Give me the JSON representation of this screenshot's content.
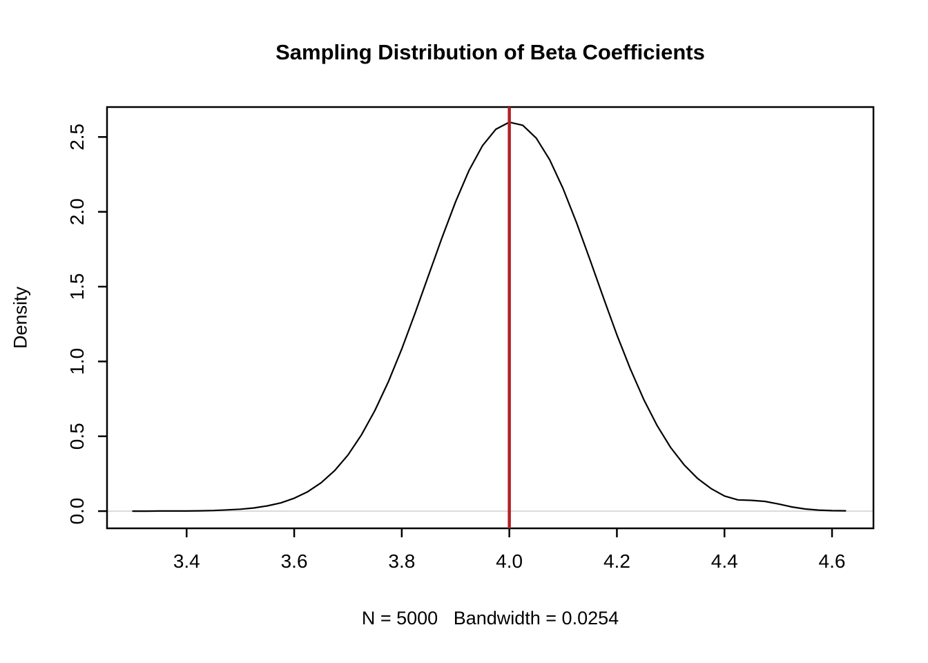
{
  "figure": {
    "background": "#ffffff"
  },
  "chart_data": {
    "type": "line",
    "title": "Sampling Distribution of Beta Coefficients",
    "xlabel": "N = 5000   Bandwidth = 0.0254",
    "ylabel": "Density",
    "x_tick_labels": [
      "3.4",
      "3.6",
      "3.8",
      "4.0",
      "4.2",
      "4.4",
      "4.6"
    ],
    "y_tick_labels": [
      "0.0",
      "0.5",
      "1.0",
      "1.5",
      "2.0",
      "2.5"
    ],
    "xlim": [
      3.252,
      4.677
    ],
    "ylim": [
      -0.115,
      2.7
    ],
    "grid": false,
    "legend": "none",
    "reference_lines": {
      "vertical": {
        "x": 4.0,
        "color": "#B22222",
        "width": 4.5
      },
      "horizontal_zero": {
        "y": 0,
        "color": "#D9D9D9",
        "width": 2
      }
    },
    "series": [
      {
        "name": "density",
        "color": "#000000",
        "width": 2.2,
        "x": [
          3.3,
          3.325,
          3.35,
          3.375,
          3.4,
          3.425,
          3.45,
          3.475,
          3.5,
          3.525,
          3.55,
          3.575,
          3.6,
          3.625,
          3.65,
          3.675,
          3.7,
          3.725,
          3.75,
          3.775,
          3.8,
          3.825,
          3.85,
          3.875,
          3.9,
          3.925,
          3.95,
          3.975,
          4.0,
          4.025,
          4.05,
          4.075,
          4.1,
          4.125,
          4.15,
          4.175,
          4.2,
          4.225,
          4.25,
          4.275,
          4.3,
          4.325,
          4.35,
          4.375,
          4.4,
          4.425,
          4.45,
          4.475,
          4.5,
          4.525,
          4.55,
          4.575,
          4.6,
          4.625
        ],
        "y": [
          0.0,
          0.0,
          0.001,
          0.001,
          0.001,
          0.002,
          0.004,
          0.008,
          0.013,
          0.021,
          0.035,
          0.055,
          0.086,
          0.129,
          0.189,
          0.27,
          0.375,
          0.509,
          0.672,
          0.864,
          1.084,
          1.325,
          1.577,
          1.829,
          2.067,
          2.276,
          2.441,
          2.552,
          2.599,
          2.578,
          2.493,
          2.348,
          2.155,
          1.927,
          1.679,
          1.425,
          1.178,
          0.95,
          0.745,
          0.57,
          0.425,
          0.309,
          0.218,
          0.151,
          0.101,
          0.075,
          0.072,
          0.065,
          0.048,
          0.028,
          0.014,
          0.007,
          0.003,
          0.002
        ]
      }
    ]
  }
}
